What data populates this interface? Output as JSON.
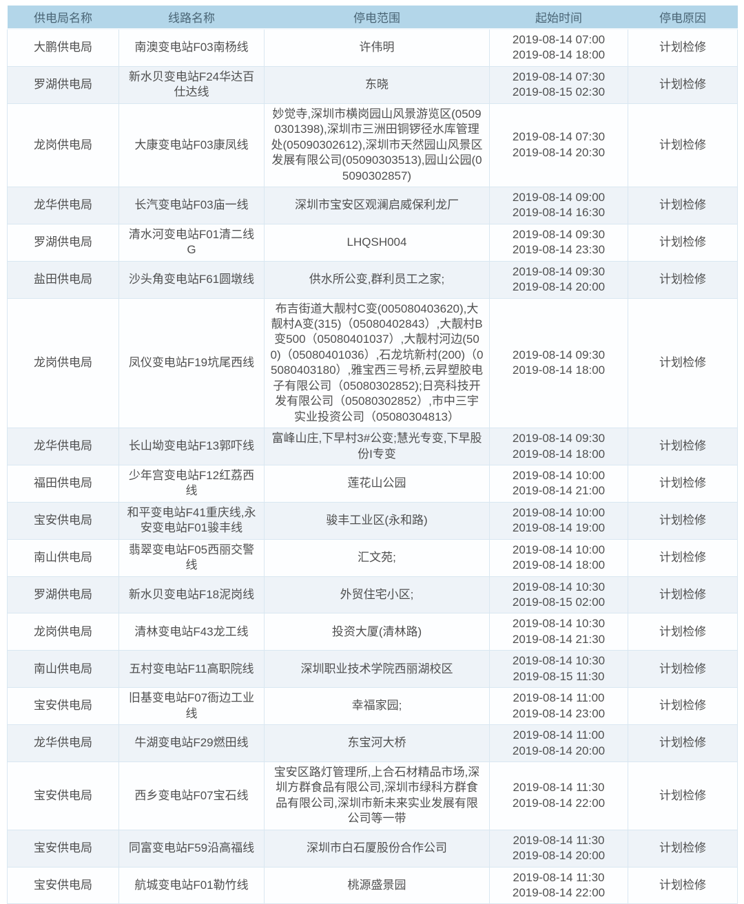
{
  "colors": {
    "header_bg": "#b3d6e9",
    "header_text": "#4a6575",
    "cell_text": "#4f4f4f",
    "stripe_bg": "#eef3f8",
    "row_bg": "#fdfeff",
    "border": "#d9e7f1"
  },
  "table": {
    "columns": [
      "供电局名称",
      "线路名称",
      "停电范围",
      "起始时间",
      "停电原因"
    ],
    "rows": [
      {
        "bureau": "大鹏供电局",
        "line": "南澳变电站F03南杨线",
        "scope": "许伟明",
        "time_start": "2019-08-14 07:00",
        "time_end": "2019-08-14 18:00",
        "reason": "计划检修"
      },
      {
        "bureau": "罗湖供电局",
        "line": "新水贝变电站F24华达百仕达线",
        "scope": "东晓",
        "time_start": "2019-08-14 07:30",
        "time_end": "2019-08-15 02:30",
        "reason": "计划检修"
      },
      {
        "bureau": "龙岗供电局",
        "line": "大康变电站F03康凤线",
        "scope": "妙觉寺,深圳市横岗园山风景游览区(05090301398),深圳市三洲田铜锣径水库管理处(05090302612),深圳市天然园山风景区发展有限公司(05090303513),园山公园(05090302857)",
        "time_start": "2019-08-14 07:30",
        "time_end": "2019-08-14 20:30",
        "reason": "计划检修"
      },
      {
        "bureau": "龙华供电局",
        "line": "长汽变电站F03庙一线",
        "scope": "深圳市宝安区观澜启威保利龙厂",
        "time_start": "2019-08-14 09:00",
        "time_end": "2019-08-14 16:30",
        "reason": "计划检修"
      },
      {
        "bureau": "罗湖供电局",
        "line": "清水河变电站F01清二线G",
        "scope": "LHQSH004",
        "time_start": "2019-08-14 09:30",
        "time_end": "2019-08-14 23:30",
        "reason": "计划检修"
      },
      {
        "bureau": "盐田供电局",
        "line": "沙头角变电站F61圆墩线",
        "scope": "供水所公变,群利员工之家;",
        "time_start": "2019-08-14 09:30",
        "time_end": "2019-08-14 20:00",
        "reason": "计划检修"
      },
      {
        "bureau": "龙岗供电局",
        "line": "凤仪变电站F19坑尾西线",
        "scope": "布吉街道大靓村C变(005080403620),大靓村A变(315)（05080402843）,大靓村B变500（05080401037）,大靓村河边(500)（05080401036）,石龙坑新村(200)（05080403180）,雅宝西三号桥,云昇塑胶电子有限公司（05080302852);日亮科技开发有限公司（05080302852）,市中三宇实业投资公司（05080304813）",
        "time_start": "2019-08-14 09:30",
        "time_end": "2019-08-14 18:00",
        "reason": "计划检修"
      },
      {
        "bureau": "龙华供电局",
        "line": "长山坳变电站F13郭吓线",
        "scope": "富峰山庄,下早村3#公变;慧光专变,下早股份I专变",
        "time_start": "2019-08-14 09:30",
        "time_end": "2019-08-14 18:00",
        "reason": "计划检修"
      },
      {
        "bureau": "福田供电局",
        "line": "少年宫变电站F12红荔西线",
        "scope": "莲花山公园",
        "time_start": "2019-08-14 10:00",
        "time_end": "2019-08-14 21:00",
        "reason": "计划检修"
      },
      {
        "bureau": "宝安供电局",
        "line": "和平变电站F41重庆线,永安变电站F01骏丰线",
        "scope": "骏丰工业区(永和路)",
        "time_start": "2019-08-14 10:00",
        "time_end": "2019-08-14 19:00",
        "reason": "计划检修"
      },
      {
        "bureau": "南山供电局",
        "line": "翡翠变电站F05西丽交警线",
        "scope": "汇文苑;",
        "time_start": "2019-08-14 10:00",
        "time_end": "2019-08-14 18:00",
        "reason": "计划检修"
      },
      {
        "bureau": "罗湖供电局",
        "line": "新水贝变电站F18泥岗线",
        "scope": "外贸住宅小区;",
        "time_start": "2019-08-14 10:30",
        "time_end": "2019-08-15 02:00",
        "reason": "计划检修"
      },
      {
        "bureau": "龙岗供电局",
        "line": "清林变电站F43龙工线",
        "scope": "投资大厦(清林路)",
        "time_start": "2019-08-14 10:30",
        "time_end": "2019-08-14 21:30",
        "reason": "计划检修"
      },
      {
        "bureau": "南山供电局",
        "line": "五村变电站F11高职院线",
        "scope": "深圳职业技术学院西丽湖校区",
        "time_start": "2019-08-14 10:30",
        "time_end": "2019-08-15 11:30",
        "reason": "计划检修"
      },
      {
        "bureau": "宝安供电局",
        "line": "旧基变电站F07衙边工业线",
        "scope": "幸福家园;",
        "time_start": "2019-08-14 11:00",
        "time_end": "2019-08-14 23:00",
        "reason": "计划检修"
      },
      {
        "bureau": "龙华供电局",
        "line": "牛湖变电站F29燃田线",
        "scope": "东宝河大桥",
        "time_start": "2019-08-14 11:00",
        "time_end": "2019-08-14 20:00",
        "reason": "计划检修"
      },
      {
        "bureau": "宝安供电局",
        "line": "西乡变电站F07宝石线",
        "scope": "宝安区路灯管理所,上合石材精品市场,深圳方群食品有限公司,深圳市绿科方群食品有限公司,深圳市新未来实业发展有限公司等一带",
        "time_start": "2019-08-14 11:30",
        "time_end": "2019-08-14 22:00",
        "reason": "计划检修"
      },
      {
        "bureau": "宝安供电局",
        "line": "同富变电站F59沿高福线",
        "scope": "深圳市白石厦股份合作公司",
        "time_start": "2019-08-14 11:30",
        "time_end": "2019-08-14 20:00",
        "reason": "计划检修"
      },
      {
        "bureau": "宝安供电局",
        "line": "航城变电站F01勒竹线",
        "scope": "桃源盛景园",
        "time_start": "2019-08-14 11:30",
        "time_end": "2019-08-14 22:00",
        "reason": "计划检修"
      }
    ]
  }
}
